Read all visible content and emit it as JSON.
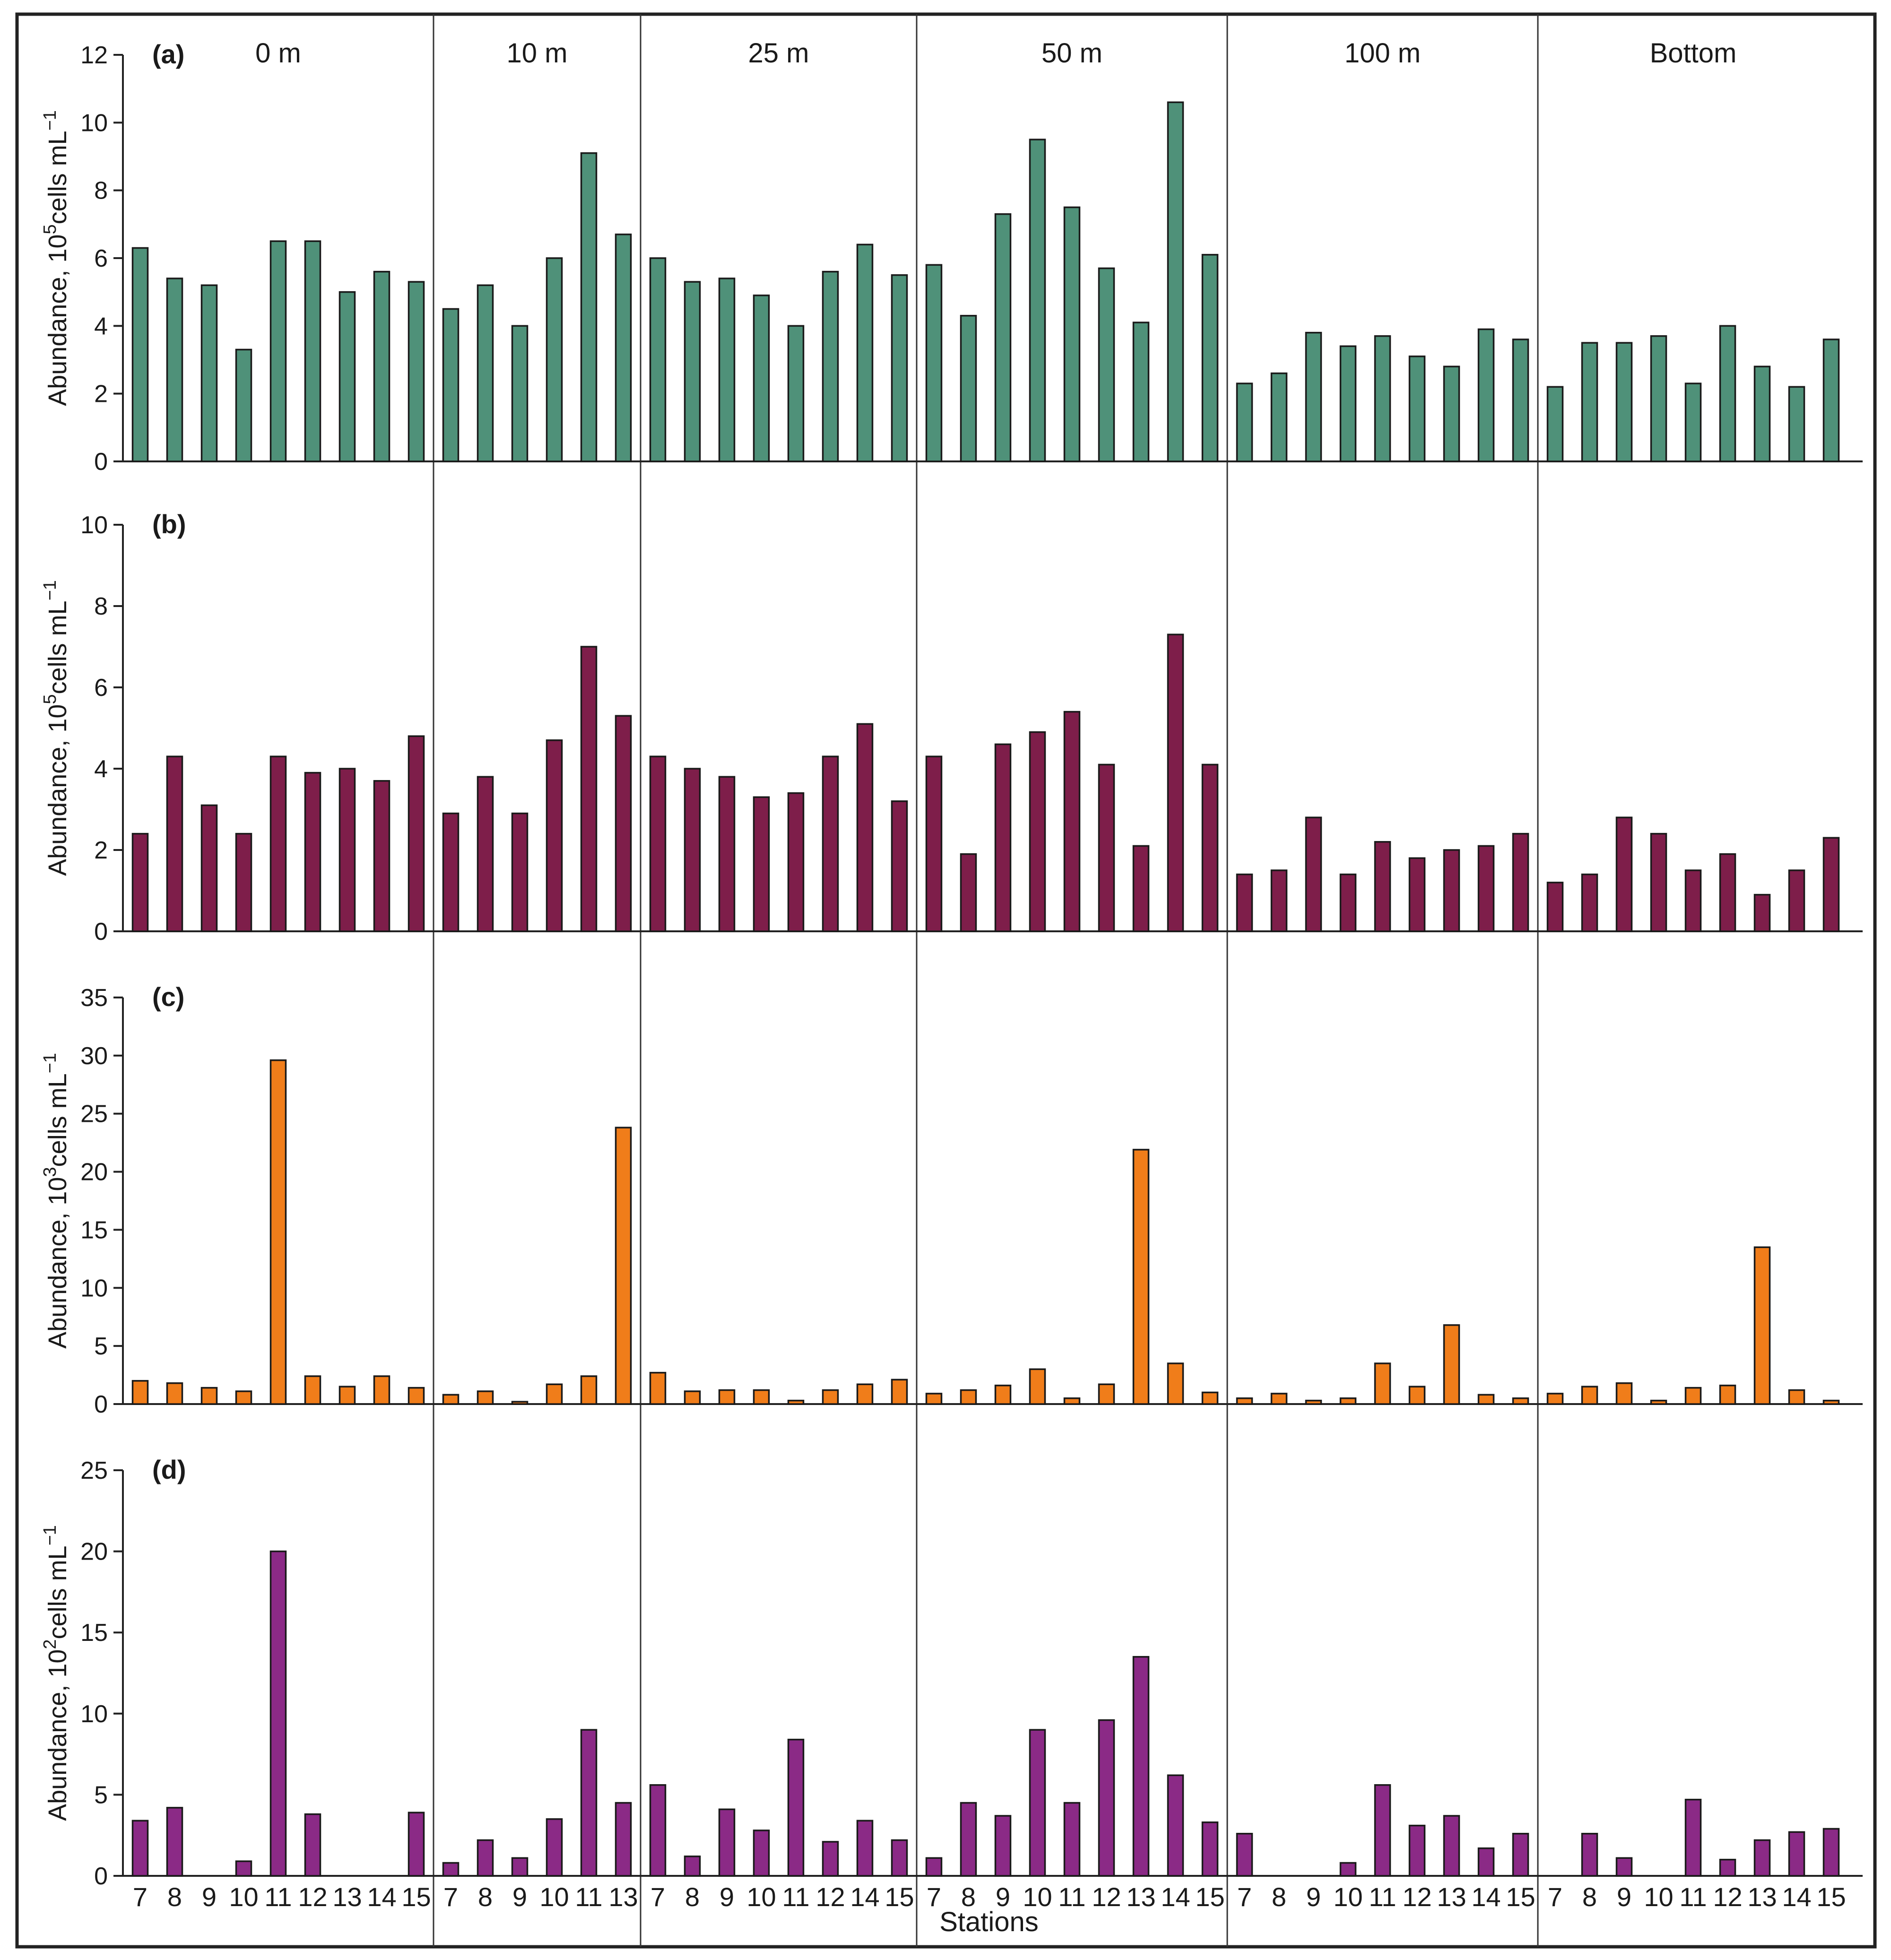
{
  "chart_data": {
    "type": "bar",
    "xlabel": "Stations",
    "groups": [
      "0 m",
      "10 m",
      "25 m",
      "50 m",
      "100 m",
      "Bottom"
    ],
    "group_stations": [
      [
        "7",
        "8",
        "9",
        "10",
        "11",
        "12",
        "13",
        "14",
        "15"
      ],
      [
        "7",
        "8",
        "9",
        "10",
        "11",
        "13"
      ],
      [
        "7",
        "8",
        "9",
        "10",
        "11",
        "12",
        "14",
        "15"
      ],
      [
        "7",
        "8",
        "9",
        "10",
        "11",
        "12",
        "13",
        "14",
        "15"
      ],
      [
        "7",
        "8",
        "9",
        "10",
        "11",
        "12",
        "13",
        "14",
        "15"
      ],
      [
        "7",
        "8",
        "9",
        "10",
        "11",
        "12",
        "13",
        "14",
        "15"
      ]
    ],
    "panels": [
      {
        "label": "(a)",
        "ylabel": {
          "prefix": "Abundance, 10",
          "exp": "5",
          "mid": "cells mL",
          "unit_exp": "−1"
        },
        "ylim": [
          0,
          12
        ],
        "yticks": [
          "0",
          "2",
          "4",
          "6",
          "8",
          "10",
          "12"
        ],
        "color": "#4f9179",
        "values": [
          [
            6.3,
            5.4,
            5.2,
            3.3,
            6.5,
            6.5,
            5.0,
            5.6,
            5.3
          ],
          [
            4.5,
            5.2,
            4.0,
            6.0,
            9.1,
            6.7
          ],
          [
            6.0,
            5.3,
            5.4,
            4.9,
            4.0,
            5.6,
            6.4,
            5.5
          ],
          [
            5.8,
            4.3,
            7.3,
            9.5,
            7.5,
            5.7,
            4.1,
            10.6,
            6.1
          ],
          [
            2.3,
            2.6,
            3.8,
            3.4,
            3.7,
            3.1,
            2.8,
            3.9,
            3.6
          ],
          [
            2.2,
            3.5,
            3.5,
            3.7,
            2.3,
            4.0,
            2.8,
            2.2,
            3.6
          ]
        ]
      },
      {
        "label": "(b)",
        "ylabel": {
          "prefix": "Abundance, 10",
          "exp": "5",
          "mid": "cells mL",
          "unit_exp": "−1"
        },
        "ylim": [
          0,
          10
        ],
        "yticks": [
          "0",
          "2",
          "4",
          "6",
          "8",
          "10"
        ],
        "color": "#7e1e4a",
        "values": [
          [
            2.4,
            4.3,
            3.1,
            2.4,
            4.3,
            3.9,
            4.0,
            3.7,
            4.8
          ],
          [
            2.9,
            3.8,
            2.9,
            4.7,
            7.0,
            5.3
          ],
          [
            4.3,
            4.0,
            3.8,
            3.3,
            3.4,
            4.3,
            5.1,
            3.2
          ],
          [
            4.3,
            1.9,
            4.6,
            4.9,
            5.4,
            4.1,
            2.1,
            7.3,
            4.1
          ],
          [
            1.4,
            1.5,
            2.8,
            1.4,
            2.2,
            1.8,
            2.0,
            2.1,
            2.4
          ],
          [
            1.2,
            1.4,
            2.8,
            2.4,
            1.5,
            1.9,
            0.9,
            1.5,
            2.3
          ]
        ]
      },
      {
        "label": "(c)",
        "ylabel": {
          "prefix": "Abundance, 10",
          "exp": "3",
          "mid": "cells mL",
          "unit_exp": "−1"
        },
        "ylim": [
          0,
          35
        ],
        "yticks": [
          "0",
          "5",
          "10",
          "15",
          "20",
          "25",
          "30",
          "35"
        ],
        "color": "#f07d1a",
        "values": [
          [
            2.0,
            1.8,
            1.4,
            1.1,
            29.6,
            2.4,
            1.5,
            2.4,
            1.4
          ],
          [
            0.8,
            1.1,
            0.2,
            1.7,
            2.4,
            23.8
          ],
          [
            2.7,
            1.1,
            1.2,
            1.2,
            0.3,
            1.2,
            1.7,
            2.1
          ],
          [
            0.9,
            1.2,
            1.6,
            3.0,
            0.5,
            1.7,
            21.9,
            3.5,
            1.0
          ],
          [
            0.5,
            0.9,
            0.3,
            0.5,
            3.5,
            1.5,
            6.8,
            0.8,
            0.5
          ],
          [
            0.9,
            1.5,
            1.8,
            0.3,
            1.4,
            1.6,
            13.5,
            1.2,
            0.3
          ]
        ]
      },
      {
        "label": "(d)",
        "ylabel": {
          "prefix": "Abundance, 10",
          "exp": "2",
          "mid": "cells mL",
          "unit_exp": "−1"
        },
        "ylim": [
          0,
          25
        ],
        "yticks": [
          "0",
          "5",
          "10",
          "15",
          "20",
          "25"
        ],
        "color": "#8b2a86",
        "values": [
          [
            3.4,
            4.2,
            0,
            0.9,
            20.0,
            3.8,
            0,
            0,
            3.9
          ],
          [
            0.8,
            2.2,
            1.1,
            3.5,
            9.0,
            4.5
          ],
          [
            5.6,
            1.2,
            4.1,
            2.8,
            8.4,
            2.1,
            3.4,
            2.2
          ],
          [
            1.1,
            4.5,
            3.7,
            9.0,
            4.5,
            9.6,
            13.5,
            6.2,
            3.3
          ],
          [
            2.6,
            0,
            0,
            0.8,
            5.6,
            3.1,
            3.7,
            1.7,
            2.6
          ],
          [
            0,
            2.6,
            1.1,
            0,
            4.7,
            1.0,
            2.2,
            2.7,
            2.9
          ]
        ]
      }
    ]
  }
}
